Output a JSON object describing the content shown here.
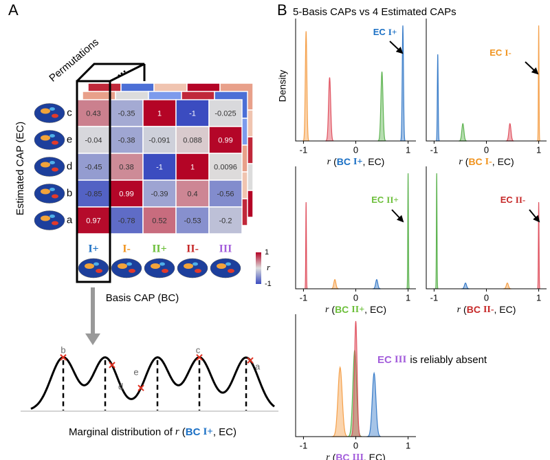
{
  "panel_a": {
    "label": "A",
    "permutations": "Permutations",
    "ellipsis": "...",
    "y_title": "Estimated CAP (EC)",
    "x_title": "Basis CAP (BC)",
    "rows": [
      "c",
      "e",
      "d",
      "b",
      "a"
    ],
    "columns": [
      {
        "name": "I+",
        "color": "#1a6fc4"
      },
      {
        "name": "I-",
        "color": "#f0931e"
      },
      {
        "name": "II+",
        "color": "#6cbf3a"
      },
      {
        "name": "II-",
        "color": "#c62828"
      },
      {
        "name": "III",
        "color": "#a35ddb"
      }
    ],
    "matrix": [
      [
        0.43,
        -0.35,
        1,
        -1,
        -0.025
      ],
      [
        -0.04,
        -0.38,
        -0.091,
        0.088,
        0.99
      ],
      [
        -0.45,
        0.38,
        -1,
        1,
        0.0096
      ],
      [
        -0.85,
        0.99,
        -0.39,
        0.4,
        -0.56
      ],
      [
        0.97,
        -0.78,
        0.52,
        -0.53,
        -0.2
      ]
    ],
    "colorbar": {
      "lim": [
        -1,
        1
      ],
      "ticks": [
        1,
        -1
      ],
      "label": "r"
    },
    "marginal": {
      "labels": [
        "b",
        "d",
        "e",
        "c",
        "a"
      ],
      "caption": {
        "text": "Marginal distribution of",
        "var": "r",
        "open": "(",
        "bc": "BC",
        "cap": "I+",
        "close": ", EC)",
        "color": "#1a6fc4"
      }
    }
  },
  "panel_b": {
    "label": "B",
    "title": "5-Basis CAPs vs 4 Estimated CAPs",
    "y_title": "Density",
    "xlim": [
      -1.15,
      1.15
    ],
    "xticks": [
      -1,
      0,
      1
    ],
    "plots": [
      {
        "xlabel": {
          "var": "r",
          "open": "(",
          "bc": "BC",
          "cap": "I+",
          "close": ", EC)"
        },
        "color": "#1a6fc4",
        "annotation": {
          "ec": "EC",
          "cap": "I+"
        },
        "peaks": [
          {
            "color": "#f5a04a",
            "center": -0.95,
            "height": 0.95,
            "sd": 0.015
          },
          {
            "color": "#e05260",
            "center": -0.5,
            "height": 0.55,
            "sd": 0.02
          },
          {
            "color": "#5db350",
            "center": 0.5,
            "height": 0.6,
            "sd": 0.02
          },
          {
            "color": "#3a7dc9",
            "center": 0.9,
            "height": 1,
            "sd": 0.012
          }
        ]
      },
      {
        "xlabel": {
          "var": "r",
          "open": "(",
          "bc": "BC",
          "cap": "I-",
          "close": ", EC)"
        },
        "color": "#f0931e",
        "annotation": {
          "ec": "EC",
          "cap": "I-"
        },
        "peaks": [
          {
            "color": "#3a7dc9",
            "center": -0.93,
            "height": 0.75,
            "sd": 0.008
          },
          {
            "color": "#5db350",
            "center": -0.45,
            "height": 0.15,
            "sd": 0.02
          },
          {
            "color": "#e05260",
            "center": 0.45,
            "height": 0.15,
            "sd": 0.02
          },
          {
            "color": "#f5a04a",
            "center": 1,
            "height": 1,
            "sd": 0.006
          }
        ]
      },
      {
        "xlabel": {
          "var": "r",
          "open": "(",
          "bc": "BC",
          "cap": "II+",
          "close": ", EC)"
        },
        "color": "#6cbf3a",
        "annotation": {
          "ec": "EC",
          "cap": "II+"
        },
        "peaks": [
          {
            "color": "#e05260",
            "center": -0.95,
            "height": 0.75,
            "sd": 0.006
          },
          {
            "color": "#f5a04a",
            "center": -0.4,
            "height": 0.08,
            "sd": 0.02
          },
          {
            "color": "#3a7dc9",
            "center": 0.4,
            "height": 0.08,
            "sd": 0.02
          },
          {
            "color": "#5db350",
            "center": 1,
            "height": 1,
            "sd": 0.006
          }
        ]
      },
      {
        "xlabel": {
          "var": "r",
          "open": "(",
          "bc": "BC",
          "cap": "II-",
          "close": ", EC)"
        },
        "color": "#c62828",
        "annotation": {
          "ec": "EC",
          "cap": "II-"
        },
        "peaks": [
          {
            "color": "#5db350",
            "center": -0.95,
            "height": 1,
            "sd": 0.006
          },
          {
            "color": "#3a7dc9",
            "center": -0.4,
            "height": 0.05,
            "sd": 0.02
          },
          {
            "color": "#f5a04a",
            "center": 0.4,
            "height": 0.05,
            "sd": 0.02
          },
          {
            "color": "#e05260",
            "center": 1,
            "height": 0.75,
            "sd": 0.006
          }
        ]
      },
      {
        "xlabel": {
          "var": "r",
          "open": "(",
          "bc": "BC",
          "cap": "III",
          "close": ", EC)"
        },
        "color": "#a35ddb",
        "annotation": {
          "ec": "EC",
          "cap": "III",
          "rest": "is reliably absent"
        },
        "peaks": [
          {
            "color": "#f5a04a",
            "center": -0.3,
            "height": 0.6,
            "sd": 0.04
          },
          {
            "color": "#5db350",
            "center": -0.02,
            "height": 0.75,
            "sd": 0.035
          },
          {
            "color": "#e05260",
            "center": 0,
            "height": 1,
            "sd": 0.025
          },
          {
            "color": "#3a7dc9",
            "center": 0.35,
            "height": 0.55,
            "sd": 0.035
          }
        ]
      }
    ]
  }
}
